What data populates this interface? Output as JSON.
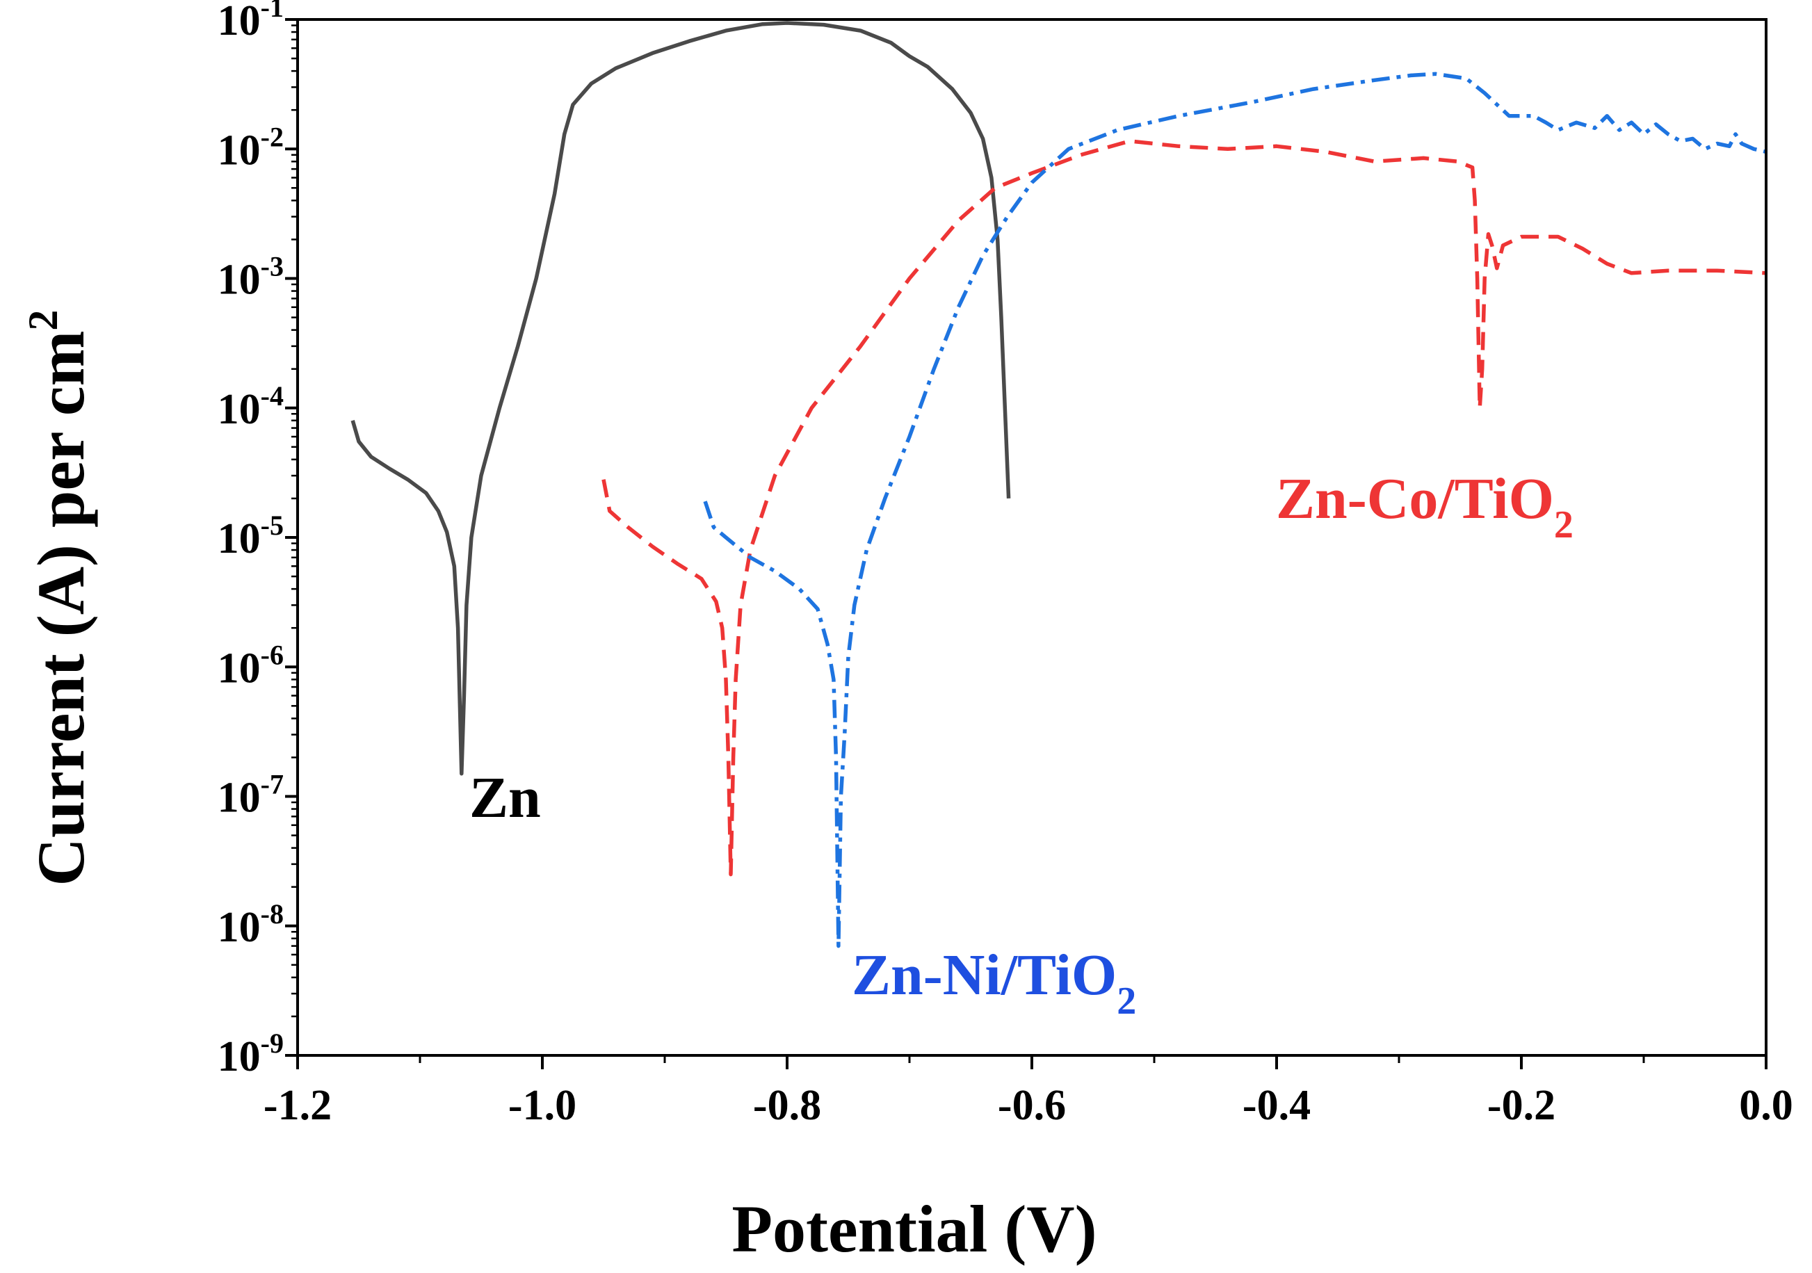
{
  "chart_data": {
    "type": "line",
    "title": "",
    "xlabel": "Potential (V)",
    "ylabel": "Current (A) per cm",
    "ylabel_sup": "2",
    "xscale": "linear",
    "yscale": "log",
    "xlim": [
      -1.2,
      0.0
    ],
    "ylim_exponents": [
      -9,
      -1
    ],
    "x_ticks": [
      -1.2,
      -1.0,
      -0.8,
      -0.6,
      -0.4,
      -0.2,
      0.0
    ],
    "x_tick_labels": [
      "-1.2",
      "-1.0",
      "-0.8",
      "-0.6",
      "-0.4",
      "-0.2",
      "0.0"
    ],
    "y_tick_base": "10",
    "y_tick_exponents": [
      "-9",
      "-8",
      "-7",
      "-6",
      "-5",
      "-4",
      "-3",
      "-2",
      "-1"
    ],
    "grid": false,
    "series": [
      {
        "name": "Zn",
        "label": "Zn",
        "color": "#4a4a4a",
        "dash": "solid",
        "points": [
          [
            -1.155,
            8e-05
          ],
          [
            -1.15,
            5.5e-05
          ],
          [
            -1.14,
            4.2e-05
          ],
          [
            -1.125,
            3.4e-05
          ],
          [
            -1.11,
            2.8e-05
          ],
          [
            -1.095,
            2.2e-05
          ],
          [
            -1.085,
            1.6e-05
          ],
          [
            -1.078,
            1.1e-05
          ],
          [
            -1.072,
            6e-06
          ],
          [
            -1.069,
            2e-06
          ],
          [
            -1.066,
            1.5e-07
          ],
          [
            -1.064,
            6e-07
          ],
          [
            -1.062,
            3e-06
          ],
          [
            -1.058,
            1e-05
          ],
          [
            -1.05,
            3e-05
          ],
          [
            -1.035,
            0.0001
          ],
          [
            -1.02,
            0.0003
          ],
          [
            -1.005,
            0.001
          ],
          [
            -0.99,
            0.0045
          ],
          [
            -0.982,
            0.013
          ],
          [
            -0.975,
            0.022
          ],
          [
            -0.96,
            0.032
          ],
          [
            -0.94,
            0.042
          ],
          [
            -0.91,
            0.055
          ],
          [
            -0.88,
            0.068
          ],
          [
            -0.85,
            0.082
          ],
          [
            -0.82,
            0.092
          ],
          [
            -0.8,
            0.094
          ],
          [
            -0.77,
            0.091
          ],
          [
            -0.74,
            0.082
          ],
          [
            -0.715,
            0.066
          ],
          [
            -0.7,
            0.052
          ],
          [
            -0.685,
            0.043
          ],
          [
            -0.665,
            0.029
          ],
          [
            -0.65,
            0.019
          ],
          [
            -0.64,
            0.012
          ],
          [
            -0.633,
            0.006
          ],
          [
            -0.628,
            0.002
          ],
          [
            -0.625,
            0.0005
          ],
          [
            -0.622,
            0.0001
          ],
          [
            -0.619,
            2e-05
          ]
        ]
      },
      {
        "name": "Zn-Co/TiO2",
        "label": "Zn-Co/TiO",
        "label_sub": "2",
        "color": "#ee3535",
        "dash": "dashed",
        "points": [
          [
            -0.95,
            2.8e-05
          ],
          [
            -0.945,
            1.6e-05
          ],
          [
            -0.93,
            1.2e-05
          ],
          [
            -0.91,
            8.5e-06
          ],
          [
            -0.89,
            6.3e-06
          ],
          [
            -0.87,
            4.8e-06
          ],
          [
            -0.858,
            3.2e-06
          ],
          [
            -0.853,
            2e-06
          ],
          [
            -0.85,
            8e-07
          ],
          [
            -0.848,
            2e-07
          ],
          [
            -0.846,
            2.5e-08
          ],
          [
            -0.844,
            2e-07
          ],
          [
            -0.842,
            8e-07
          ],
          [
            -0.838,
            3e-06
          ],
          [
            -0.83,
            8e-06
          ],
          [
            -0.81,
            3e-05
          ],
          [
            -0.78,
            0.0001
          ],
          [
            -0.74,
            0.0003
          ],
          [
            -0.7,
            0.001
          ],
          [
            -0.66,
            0.0028
          ],
          [
            -0.63,
            0.005
          ],
          [
            -0.6,
            0.0065
          ],
          [
            -0.56,
            0.009
          ],
          [
            -0.52,
            0.0115
          ],
          [
            -0.48,
            0.0105
          ],
          [
            -0.44,
            0.01
          ],
          [
            -0.4,
            0.0105
          ],
          [
            -0.36,
            0.0095
          ],
          [
            -0.32,
            0.008
          ],
          [
            -0.28,
            0.0085
          ],
          [
            -0.252,
            0.008
          ],
          [
            -0.24,
            0.0072
          ],
          [
            -0.238,
            0.004
          ],
          [
            -0.236,
            0.001
          ],
          [
            -0.234,
            0.0001
          ],
          [
            -0.232,
            0.0002
          ],
          [
            -0.23,
            0.001
          ],
          [
            -0.227,
            0.0022
          ],
          [
            -0.224,
            0.0018
          ],
          [
            -0.22,
            0.0012
          ],
          [
            -0.215,
            0.0018
          ],
          [
            -0.2,
            0.0021
          ],
          [
            -0.17,
            0.0021
          ],
          [
            -0.15,
            0.0017
          ],
          [
            -0.13,
            0.0013
          ],
          [
            -0.11,
            0.0011
          ],
          [
            -0.08,
            0.00115
          ],
          [
            -0.04,
            0.00115
          ],
          [
            0.0,
            0.0011
          ]
        ]
      },
      {
        "name": "Zn-Ni/TiO2",
        "label": "Zn-Ni/TiO",
        "label_sub": "2",
        "color": "#1e74e0",
        "dash": "dashdot",
        "points": [
          [
            -0.867,
            1.9e-05
          ],
          [
            -0.86,
            1.2e-05
          ],
          [
            -0.85,
            1e-05
          ],
          [
            -0.83,
            7e-06
          ],
          [
            -0.81,
            5.5e-06
          ],
          [
            -0.79,
            4e-06
          ],
          [
            -0.775,
            2.8e-06
          ],
          [
            -0.767,
            1.5e-06
          ],
          [
            -0.762,
            8e-07
          ],
          [
            -0.76,
            2e-07
          ],
          [
            -0.758,
            7e-09
          ],
          [
            -0.756,
            1e-07
          ],
          [
            -0.753,
            3e-07
          ],
          [
            -0.75,
            1.2e-06
          ],
          [
            -0.745,
            3e-06
          ],
          [
            -0.735,
            8e-06
          ],
          [
            -0.72,
            2e-05
          ],
          [
            -0.7,
            6e-05
          ],
          [
            -0.68,
            0.0002
          ],
          [
            -0.66,
            0.0006
          ],
          [
            -0.64,
            0.0015
          ],
          [
            -0.62,
            0.003
          ],
          [
            -0.6,
            0.0055
          ],
          [
            -0.57,
            0.01
          ],
          [
            -0.53,
            0.014
          ],
          [
            -0.48,
            0.018
          ],
          [
            -0.42,
            0.023
          ],
          [
            -0.37,
            0.029
          ],
          [
            -0.32,
            0.034
          ],
          [
            -0.29,
            0.037
          ],
          [
            -0.27,
            0.038
          ],
          [
            -0.245,
            0.035
          ],
          [
            -0.23,
            0.027
          ],
          [
            -0.21,
            0.018
          ],
          [
            -0.19,
            0.018
          ],
          [
            -0.18,
            0.016
          ],
          [
            -0.17,
            0.014
          ],
          [
            -0.155,
            0.016
          ],
          [
            -0.14,
            0.0145
          ],
          [
            -0.13,
            0.018
          ],
          [
            -0.12,
            0.014
          ],
          [
            -0.11,
            0.016
          ],
          [
            -0.1,
            0.013
          ],
          [
            -0.09,
            0.0155
          ],
          [
            -0.08,
            0.013
          ],
          [
            -0.07,
            0.0115
          ],
          [
            -0.06,
            0.012
          ],
          [
            -0.05,
            0.01
          ],
          [
            -0.04,
            0.011
          ],
          [
            -0.03,
            0.0105
          ],
          [
            -0.025,
            0.013
          ],
          [
            -0.02,
            0.011
          ],
          [
            -0.01,
            0.01
          ],
          [
            0.0,
            0.0095
          ]
        ]
      }
    ]
  }
}
